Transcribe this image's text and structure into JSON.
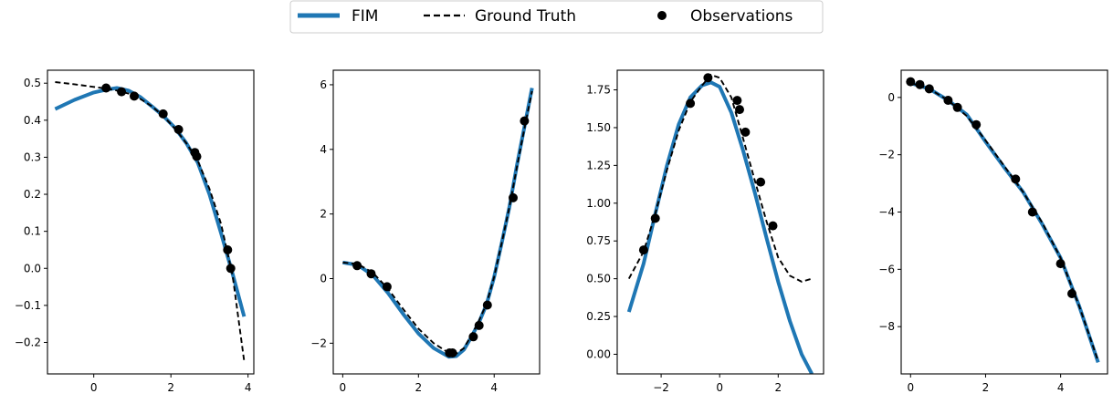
{
  "legend": {
    "placement": "top-center",
    "entries": [
      {
        "label": "FIM",
        "style": "solid",
        "color": "#1f77b4"
      },
      {
        "label": "Ground Truth",
        "style": "dashed",
        "color": "#000000"
      },
      {
        "label": "Observations",
        "style": "marker",
        "color": "#000000"
      }
    ]
  },
  "colors": {
    "fim": "#1f77b4",
    "truth": "#000000",
    "obs": "#000000"
  },
  "chart_data": [
    {
      "type": "line",
      "xlim": [
        -1.2,
        4.15
      ],
      "ylim": [
        -0.285,
        0.535
      ],
      "xticks": [
        0,
        2,
        4
      ],
      "xtick_labels": [
        "0",
        "2",
        "4"
      ],
      "yticks": [
        0.5,
        0.4,
        0.3,
        0.2,
        0.1,
        0.0,
        -0.1,
        -0.2
      ],
      "ytick_labels": [
        "0.5",
        "0.4",
        "0.3",
        "0.2",
        "0.1",
        "0.0",
        "−0.1",
        "−0.2"
      ],
      "series": [
        {
          "role": "fim",
          "x": [
            -1.0,
            -0.5,
            0.0,
            0.3,
            0.6,
            0.9,
            1.2,
            1.5,
            1.8,
            2.1,
            2.4,
            2.7,
            3.0,
            3.3,
            3.6,
            3.9
          ],
          "y": [
            0.43,
            0.455,
            0.475,
            0.482,
            0.487,
            0.48,
            0.463,
            0.438,
            0.412,
            0.38,
            0.338,
            0.285,
            0.2,
            0.095,
            -0.015,
            -0.13
          ]
        },
        {
          "role": "truth",
          "x": [
            -1.0,
            -0.5,
            0.0,
            0.3,
            0.6,
            0.9,
            1.2,
            1.5,
            1.8,
            2.1,
            2.4,
            2.7,
            3.0,
            3.3,
            3.6,
            3.9
          ],
          "y": [
            0.503,
            0.497,
            0.49,
            0.486,
            0.48,
            0.472,
            0.458,
            0.438,
            0.412,
            0.378,
            0.338,
            0.29,
            0.215,
            0.12,
            -0.02,
            -0.25
          ]
        },
        {
          "role": "obs",
          "x": [
            0.32,
            0.72,
            1.05,
            1.8,
            2.2,
            2.62,
            2.67,
            3.47,
            3.55
          ],
          "y": [
            0.487,
            0.477,
            0.465,
            0.417,
            0.375,
            0.313,
            0.302,
            0.05,
            0.0
          ]
        }
      ]
    },
    {
      "type": "line",
      "xlim": [
        -0.25,
        5.2
      ],
      "ylim": [
        -2.95,
        6.45
      ],
      "xticks": [
        0,
        2,
        4
      ],
      "xtick_labels": [
        "0",
        "2",
        "4"
      ],
      "yticks": [
        6,
        4,
        2,
        0,
        -2
      ],
      "ytick_labels": [
        "6",
        "4",
        "2",
        "0",
        "−2"
      ],
      "series": [
        {
          "role": "fim",
          "x": [
            0.0,
            0.4,
            0.8,
            1.2,
            1.6,
            2.0,
            2.4,
            2.8,
            3.0,
            3.2,
            3.4,
            3.6,
            3.8,
            4.0,
            4.2,
            4.4,
            4.6,
            4.8,
            5.0
          ],
          "y": [
            0.5,
            0.42,
            0.1,
            -0.45,
            -1.1,
            -1.7,
            -2.15,
            -2.42,
            -2.4,
            -2.2,
            -1.8,
            -1.35,
            -0.8,
            0.05,
            1.1,
            2.2,
            3.5,
            4.7,
            5.9
          ]
        },
        {
          "role": "truth",
          "x": [
            0.0,
            0.4,
            0.8,
            1.2,
            1.6,
            2.0,
            2.4,
            2.8,
            3.0,
            3.2,
            3.4,
            3.6,
            3.8,
            4.0,
            4.2,
            4.4,
            4.6,
            4.8,
            5.0
          ],
          "y": [
            0.5,
            0.45,
            0.18,
            -0.32,
            -0.95,
            -1.55,
            -2.0,
            -2.3,
            -2.32,
            -2.15,
            -1.75,
            -1.3,
            -0.78,
            0.05,
            1.1,
            2.2,
            3.45,
            4.65,
            5.8
          ]
        },
        {
          "role": "obs",
          "x": [
            0.38,
            0.75,
            1.17,
            2.82,
            2.9,
            3.45,
            3.6,
            3.82,
            4.5,
            4.8
          ],
          "y": [
            0.4,
            0.15,
            -0.25,
            -2.3,
            -2.3,
            -1.8,
            -1.45,
            -0.82,
            2.5,
            4.88
          ]
        }
      ]
    },
    {
      "type": "line",
      "xlim": [
        -3.5,
        3.55
      ],
      "ylim": [
        -0.13,
        1.88
      ],
      "xticks": [
        -2,
        0,
        2
      ],
      "xtick_labels": [
        "−2",
        "0",
        "2"
      ],
      "yticks": [
        1.75,
        1.5,
        1.25,
        1.0,
        0.75,
        0.5,
        0.25,
        0.0
      ],
      "ytick_labels": [
        "1.75",
        "1.50",
        "1.25",
        "1.00",
        "0.75",
        "0.50",
        "0.25",
        "0.00"
      ],
      "series": [
        {
          "role": "fim",
          "x": [
            -3.1,
            -2.6,
            -2.2,
            -1.8,
            -1.4,
            -1.0,
            -0.6,
            -0.3,
            0.0,
            0.4,
            0.8,
            1.2,
            1.6,
            2.0,
            2.4,
            2.8,
            3.15
          ],
          "y": [
            0.28,
            0.6,
            0.93,
            1.25,
            1.52,
            1.7,
            1.78,
            1.8,
            1.77,
            1.6,
            1.35,
            1.07,
            0.77,
            0.48,
            0.22,
            0.0,
            -0.13
          ]
        },
        {
          "role": "truth",
          "x": [
            -3.1,
            -2.6,
            -2.2,
            -1.8,
            -1.4,
            -1.0,
            -0.6,
            -0.3,
            0.0,
            0.4,
            0.8,
            1.2,
            1.6,
            2.0,
            2.4,
            2.8,
            3.15
          ],
          "y": [
            0.5,
            0.68,
            0.93,
            1.22,
            1.48,
            1.67,
            1.78,
            1.85,
            1.83,
            1.7,
            1.43,
            1.15,
            0.88,
            0.64,
            0.52,
            0.48,
            0.5
          ]
        },
        {
          "role": "obs",
          "x": [
            -2.6,
            -2.2,
            -1.0,
            -0.4,
            0.6,
            0.68,
            0.88,
            1.4,
            1.82
          ],
          "y": [
            0.69,
            0.9,
            1.66,
            1.83,
            1.68,
            1.62,
            1.47,
            1.14,
            0.85
          ]
        }
      ]
    },
    {
      "type": "line",
      "xlim": [
        -0.25,
        5.25
      ],
      "ylim": [
        -9.65,
        0.95
      ],
      "xticks": [
        0,
        2,
        4
      ],
      "xtick_labels": [
        "0",
        "2",
        "4"
      ],
      "yticks": [
        0,
        -2,
        -4,
        -6,
        -8
      ],
      "ytick_labels": [
        "0",
        "−2",
        "−4",
        "−6",
        "−8"
      ],
      "series": [
        {
          "role": "fim",
          "x": [
            0.0,
            0.5,
            1.0,
            1.5,
            2.0,
            2.5,
            3.0,
            3.5,
            4.0,
            4.5,
            5.0
          ],
          "y": [
            0.5,
            0.3,
            -0.1,
            -0.6,
            -1.55,
            -2.45,
            -3.3,
            -4.4,
            -5.6,
            -7.3,
            -9.25
          ]
        },
        {
          "role": "truth",
          "x": [
            0.0,
            0.5,
            1.0,
            1.5,
            2.0,
            2.5,
            3.0,
            3.5,
            4.0,
            4.5,
            5.0
          ],
          "y": [
            0.5,
            0.3,
            -0.1,
            -0.65,
            -1.5,
            -2.4,
            -3.3,
            -4.35,
            -5.6,
            -7.3,
            -9.2
          ]
        },
        {
          "role": "obs",
          "x": [
            0.0,
            0.25,
            0.5,
            1.0,
            1.25,
            1.75,
            2.8,
            3.25,
            4.0,
            4.3
          ],
          "y": [
            0.55,
            0.45,
            0.3,
            -0.1,
            -0.35,
            -0.95,
            -2.85,
            -4.0,
            -5.8,
            -6.85
          ]
        }
      ]
    }
  ]
}
